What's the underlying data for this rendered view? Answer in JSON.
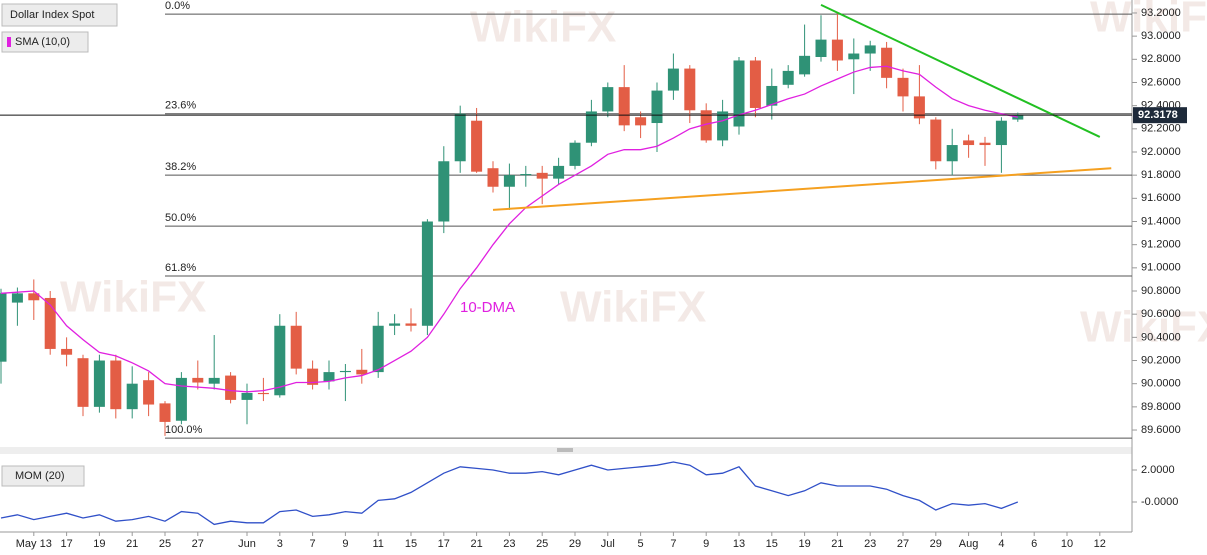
{
  "chart_data": [
    {
      "type": "candlestick",
      "title": "Dollar Index Spot",
      "categories": [
        null,
        null,
        "May 13",
        null,
        "17",
        null,
        "19",
        null,
        "21",
        null,
        "25",
        null,
        "27",
        null,
        null,
        "Jun",
        null,
        "3",
        null,
        "7",
        null,
        "9",
        null,
        "11",
        null,
        "15",
        null,
        "17",
        null,
        "21",
        null,
        "23",
        null,
        "25",
        null,
        "29",
        null,
        "Jul",
        null,
        "5",
        null,
        "7",
        null,
        "9",
        null,
        "13",
        null,
        "15",
        null,
        "19",
        null,
        "21",
        null,
        "23",
        null,
        "27",
        null,
        "29",
        null,
        "Aug",
        null,
        "4",
        null,
        "6",
        null,
        "10",
        null,
        "12"
      ],
      "open": [
        90.19,
        90.7,
        90.78,
        90.74,
        90.3,
        90.22,
        89.8,
        90.2,
        89.78,
        90.03,
        89.83,
        89.68,
        90.05,
        90.0,
        90.07,
        89.86,
        89.92,
        89.9,
        90.5,
        90.13,
        90.02,
        90.1,
        90.12,
        90.1,
        90.5,
        90.52,
        90.5,
        91.4,
        91.92,
        92.27,
        91.86,
        91.7,
        91.8,
        91.82,
        91.77,
        91.88,
        92.08,
        92.35,
        92.56,
        92.3,
        92.25,
        92.53,
        92.72,
        92.36,
        92.1,
        92.22,
        92.79,
        92.4,
        92.58,
        92.67,
        92.82,
        92.97,
        92.8,
        92.85,
        92.9,
        92.64,
        92.48,
        92.28,
        91.92,
        92.1,
        92.08,
        92.06,
        92.28,
        null,
        null,
        null,
        null,
        null
      ],
      "high": [
        90.82,
        90.83,
        90.9,
        90.8,
        90.4,
        90.25,
        90.25,
        90.25,
        90.15,
        90.1,
        89.85,
        90.1,
        90.2,
        90.42,
        90.1,
        90.0,
        90.05,
        90.6,
        90.62,
        90.2,
        90.2,
        90.17,
        90.3,
        90.62,
        90.6,
        90.65,
        91.42,
        92.05,
        92.4,
        92.38,
        91.92,
        91.9,
        91.88,
        91.88,
        91.95,
        92.1,
        92.45,
        92.6,
        92.75,
        92.35,
        92.6,
        92.85,
        92.75,
        92.42,
        92.45,
        92.82,
        92.82,
        92.72,
        92.75,
        93.1,
        93.18,
        93.2,
        92.98,
        92.96,
        92.95,
        92.72,
        92.75,
        92.3,
        92.2,
        92.15,
        92.13,
        92.3,
        92.34,
        null,
        null,
        null,
        null,
        null
      ],
      "low": [
        90.0,
        90.5,
        90.55,
        90.25,
        90.15,
        89.72,
        89.75,
        89.7,
        89.7,
        89.72,
        89.55,
        89.65,
        89.95,
        89.95,
        89.83,
        89.65,
        89.85,
        89.88,
        90.08,
        89.95,
        89.95,
        89.85,
        90.0,
        90.05,
        90.42,
        90.45,
        90.42,
        91.3,
        91.82,
        91.82,
        91.65,
        91.5,
        91.7,
        91.55,
        91.72,
        91.85,
        92.05,
        92.3,
        92.18,
        92.12,
        92.0,
        92.45,
        92.25,
        92.08,
        92.05,
        92.15,
        92.3,
        92.28,
        92.55,
        92.65,
        92.78,
        92.7,
        92.5,
        92.7,
        92.55,
        92.35,
        92.24,
        91.85,
        91.8,
        91.95,
        91.88,
        91.82,
        92.26,
        null,
        null,
        null,
        null,
        null
      ],
      "close": [
        90.78,
        90.78,
        90.72,
        90.3,
        90.25,
        89.8,
        90.2,
        89.78,
        90.0,
        89.82,
        89.67,
        90.05,
        90.01,
        90.05,
        89.86,
        89.92,
        89.91,
        90.5,
        90.13,
        89.99,
        90.1,
        90.11,
        90.08,
        90.5,
        90.52,
        90.5,
        91.4,
        91.92,
        92.33,
        91.83,
        91.7,
        91.8,
        91.81,
        91.77,
        91.88,
        92.08,
        92.35,
        92.56,
        92.23,
        92.23,
        92.53,
        92.72,
        92.36,
        92.1,
        92.35,
        92.79,
        92.38,
        92.57,
        92.7,
        92.83,
        92.97,
        92.79,
        92.85,
        92.92,
        92.64,
        92.48,
        92.29,
        91.92,
        92.06,
        92.06,
        92.06,
        92.27,
        92.32,
        null,
        null,
        null,
        null,
        null
      ],
      "up_color": "#2f9276",
      "down_color": "#e35d45",
      "series": [
        {
          "name": "SMA (10,0)",
          "color": "#e020e0",
          "values": [
            90.78,
            90.79,
            90.8,
            90.68,
            90.5,
            90.38,
            90.27,
            90.24,
            90.18,
            90.11,
            90.0,
            89.98,
            89.97,
            89.96,
            89.94,
            89.93,
            89.94,
            89.97,
            90.01,
            90.01,
            90.02,
            90.05,
            90.07,
            90.12,
            90.2,
            90.28,
            90.4,
            90.6,
            90.82,
            91.0,
            91.2,
            91.38,
            91.52,
            91.62,
            91.72,
            91.8,
            91.88,
            91.98,
            92.02,
            92.02,
            92.05,
            92.12,
            92.2,
            92.24,
            92.27,
            92.32,
            92.36,
            92.41,
            92.46,
            92.5,
            92.57,
            92.63,
            92.69,
            92.73,
            92.74,
            92.7,
            92.67,
            92.56,
            92.46,
            92.4,
            92.36,
            92.33,
            92.3,
            null,
            null,
            null,
            null,
            null
          ]
        }
      ],
      "annotation": "10-DMA",
      "watermark": "WikiFX",
      "fib_levels": [
        {
          "label": "0.0%",
          "value": 93.19
        },
        {
          "label": "23.6%",
          "value": 92.33
        },
        {
          "label": "38.2%",
          "value": 91.8
        },
        {
          "label": "50.0%",
          "value": 91.36
        },
        {
          "label": "61.8%",
          "value": 90.93
        },
        {
          "label": "100.0%",
          "value": 89.53
        }
      ],
      "trendlines": [
        {
          "color": "#22c022",
          "x": [
            50,
            67
          ],
          "y": [
            93.27,
            92.13
          ]
        },
        {
          "color": "#f5a020",
          "x": [
            30,
            67.7
          ],
          "y": [
            91.5,
            91.86
          ]
        }
      ],
      "last_price": 92.3178,
      "ylim": [
        89.488,
        93.312
      ],
      "yticks": [
        {
          "value": 89.6,
          "label": "89.6000"
        },
        {
          "value": 89.8,
          "label": "89.8000"
        },
        {
          "value": 90.0,
          "label": "90.0000"
        },
        {
          "value": 90.2,
          "label": "90.2000"
        },
        {
          "value": 90.4,
          "label": "90.4000"
        },
        {
          "value": 90.6,
          "label": "90.6000"
        },
        {
          "value": 90.8,
          "label": "90.8000"
        },
        {
          "value": 91.0,
          "label": "91.0000"
        },
        {
          "value": 91.2,
          "label": "91.2000"
        },
        {
          "value": 91.4,
          "label": "91.4000"
        },
        {
          "value": 91.6,
          "label": "91.6000"
        },
        {
          "value": 91.8,
          "label": "91.8000"
        },
        {
          "value": 92.0,
          "label": "92.0000"
        },
        {
          "value": 92.2,
          "label": "92.2000"
        },
        {
          "value": 92.4,
          "label": "92.4000"
        },
        {
          "value": 92.6,
          "label": "92.6000"
        },
        {
          "value": 92.8,
          "label": "92.8000"
        },
        {
          "value": 93.0,
          "label": "93.0000"
        },
        {
          "value": 93.2,
          "label": "93.2000"
        }
      ]
    },
    {
      "type": "line",
      "series": [
        {
          "name": "MOM (20)",
          "color": "#3050c8",
          "values": [
            -1.0,
            -0.8,
            -1.1,
            -0.9,
            -0.7,
            -1.0,
            -0.8,
            -1.2,
            -1.1,
            -0.9,
            -1.2,
            -0.6,
            -0.7,
            -1.4,
            -1.2,
            -1.3,
            -1.3,
            -0.6,
            -0.5,
            -0.9,
            -0.8,
            -0.6,
            -0.7,
            0.1,
            0.2,
            0.6,
            1.2,
            1.8,
            2.2,
            2.1,
            2.0,
            1.8,
            1.8,
            1.9,
            1.7,
            2.0,
            2.3,
            2.0,
            2.1,
            2.2,
            2.3,
            2.5,
            2.3,
            1.7,
            1.8,
            2.2,
            1.0,
            0.7,
            0.4,
            0.7,
            1.2,
            1.0,
            1.0,
            1.0,
            0.8,
            0.4,
            0.1,
            -0.5,
            -0.1,
            -0.2,
            -0.1,
            -0.4,
            0.0,
            null,
            null,
            null,
            null,
            null
          ]
        }
      ],
      "ylim": [
        -1.75,
        2.75
      ],
      "yticks": [
        {
          "value": 0,
          "label": "-0.0000"
        },
        {
          "value": 2,
          "label": "2.0000"
        }
      ]
    }
  ]
}
